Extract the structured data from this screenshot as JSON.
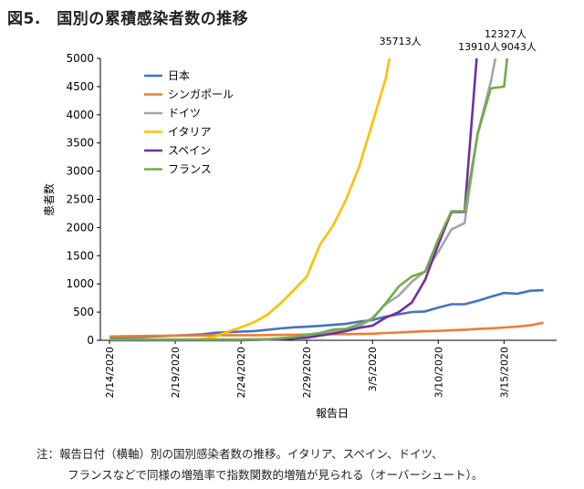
{
  "title": "図5.　国別の累積感染者数の推移",
  "note": {
    "line1": "注：報告日付（横軸）別の国別感染者数の推移。イタリア、スペイン、ドイツ、",
    "line2": "フランスなどで同様の増殖率で指数関数的増殖が見られる（オーバーシュート）。"
  },
  "chart_data": {
    "type": "line",
    "title": "",
    "xlabel": "報告日",
    "ylabel": "患者数",
    "ylim": [
      0,
      5000
    ],
    "yticks": [
      0,
      500,
      1000,
      1500,
      2000,
      2500,
      3000,
      3500,
      4000,
      4500,
      5000
    ],
    "x": [
      "2/14/2020",
      "2/15/2020",
      "2/16/2020",
      "2/17/2020",
      "2/18/2020",
      "2/19/2020",
      "2/20/2020",
      "2/21/2020",
      "2/22/2020",
      "2/23/2020",
      "2/24/2020",
      "2/25/2020",
      "2/26/2020",
      "2/27/2020",
      "2/28/2020",
      "2/29/2020",
      "3/1/2020",
      "3/2/2020",
      "3/3/2020",
      "3/4/2020",
      "3/5/2020",
      "3/6/2020",
      "3/7/2020",
      "3/8/2020",
      "3/9/2020",
      "3/10/2020",
      "3/11/2020",
      "3/12/2020",
      "3/13/2020",
      "3/14/2020",
      "3/15/2020",
      "3/16/2020",
      "3/17/2020",
      "3/18/2020",
      "3/19/2020"
    ],
    "xtick_labels": [
      "2/14/2020",
      "2/19/2020",
      "2/24/2020",
      "2/29/2020",
      "3/5/2020",
      "3/10/2020",
      "3/15/2020"
    ],
    "grid": false,
    "legend_position": "top-left",
    "series": [
      {
        "name": "日本",
        "color": "#4472c4",
        "values": [
          41,
          53,
          59,
          66,
          74,
          84,
          94,
          105,
          132,
          144,
          156,
          164,
          186,
          210,
          230,
          241,
          256,
          274,
          293,
          331,
          360,
          420,
          461,
          502,
          511,
          581,
          639,
          639,
          701,
          773,
          839,
          825,
          878,
          889,
          null
        ]
      },
      {
        "name": "シンガポール",
        "color": "#ed7d31",
        "values": [
          67,
          72,
          75,
          77,
          81,
          84,
          85,
          86,
          89,
          89,
          90,
          91,
          93,
          96,
          98,
          102,
          106,
          108,
          110,
          112,
          117,
          130,
          138,
          150,
          160,
          166,
          178,
          187,
          200,
          212,
          226,
          243,
          266,
          313,
          null
        ]
      },
      {
        "name": "ドイツ",
        "color": "#a5a5a5",
        "values": [
          16,
          16,
          16,
          16,
          16,
          16,
          16,
          16,
          16,
          16,
          16,
          18,
          21,
          26,
          53,
          66,
          117,
          150,
          188,
          240,
          400,
          639,
          795,
          1040,
          1224,
          1565,
          1966,
          2078,
          3675,
          4585,
          5795,
          null,
          null,
          null,
          null
        ]
      },
      {
        "name": "イタリア",
        "color": "#ffc000",
        "values": [
          3,
          3,
          3,
          3,
          3,
          3,
          3,
          20,
          62,
          155,
          229,
          322,
          453,
          655,
          888,
          1128,
          1694,
          2036,
          2502,
          3089,
          3858,
          4636,
          5883,
          null,
          null,
          null,
          null,
          null,
          null,
          null,
          null,
          null,
          null,
          null,
          null
        ]
      },
      {
        "name": "スペイン",
        "color": "#7030a0",
        "values": [
          2,
          2,
          2,
          2,
          2,
          2,
          2,
          2,
          2,
          2,
          2,
          6,
          13,
          15,
          32,
          45,
          84,
          120,
          165,
          222,
          259,
          400,
          500,
          673,
          1073,
          1695,
          2277,
          2277,
          5232,
          null,
          null,
          null,
          null,
          null,
          null
        ]
      },
      {
        "name": "フランス",
        "color": "#70ad47",
        "values": [
          11,
          11,
          11,
          12,
          12,
          12,
          12,
          12,
          12,
          12,
          12,
          14,
          18,
          38,
          57,
          100,
          130,
          191,
          204,
          288,
          380,
          656,
          957,
          1134,
          1217,
          1792,
          2289,
          2289,
          3661,
          4469,
          4499,
          6633,
          null,
          null,
          null
        ]
      }
    ],
    "annotations": [
      {
        "text": "35713人",
        "series": "イタリア"
      },
      {
        "text": "13910人",
        "series": "スペイン"
      },
      {
        "text": "12327人",
        "series": "ドイツ"
      },
      {
        "text": "9043人",
        "series": "フランス"
      }
    ]
  }
}
